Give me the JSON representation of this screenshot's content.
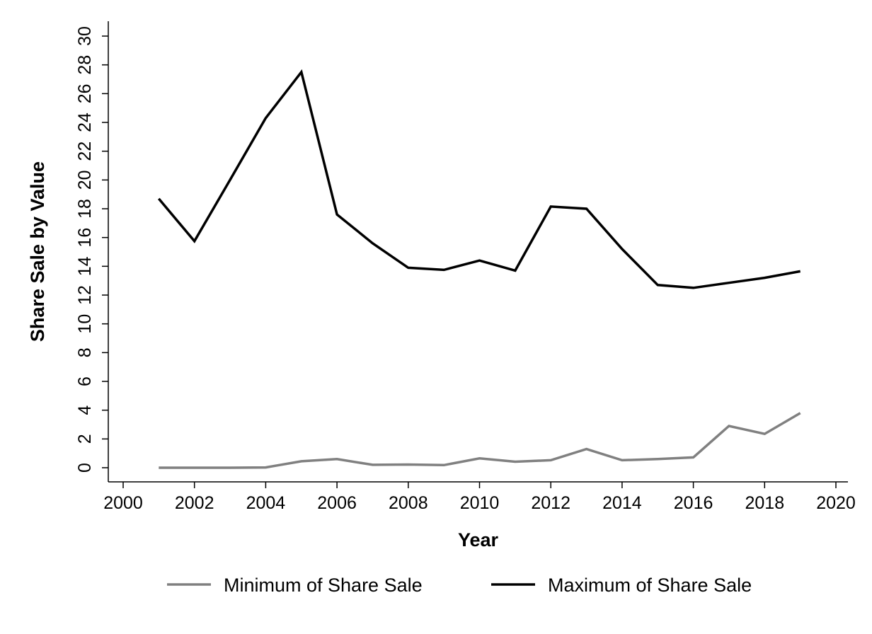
{
  "chart_data": {
    "type": "line",
    "xlabel": "Year",
    "ylabel": "Share Sale by Value",
    "xlim": [
      2000,
      2020
    ],
    "ylim": [
      0,
      30
    ],
    "xticks": [
      2000,
      2002,
      2004,
      2006,
      2008,
      2010,
      2012,
      2014,
      2016,
      2018,
      2020
    ],
    "yticks": [
      0,
      2,
      4,
      6,
      8,
      10,
      12,
      14,
      16,
      18,
      20,
      22,
      24,
      26,
      28,
      30
    ],
    "grid": false,
    "legend_position": "bottom",
    "x": [
      2001,
      2002,
      2003,
      2004,
      2005,
      2006,
      2007,
      2008,
      2009,
      2010,
      2011,
      2012,
      2013,
      2014,
      2015,
      2016,
      2017,
      2018,
      2019
    ],
    "series": [
      {
        "name": "Minimum of Share Sale",
        "color": "#808080",
        "values": [
          0.0,
          0.0,
          0.0,
          0.02,
          0.45,
          0.6,
          0.2,
          0.22,
          0.18,
          0.65,
          0.42,
          0.52,
          1.3,
          0.52,
          0.6,
          0.72,
          2.9,
          2.35,
          3.8
        ]
      },
      {
        "name": "Maximum of Share Sale",
        "color": "#000000",
        "values": [
          18.7,
          15.75,
          20.0,
          24.3,
          27.5,
          17.6,
          15.6,
          13.9,
          13.75,
          14.4,
          13.7,
          18.15,
          18.0,
          15.2,
          12.7,
          12.5,
          12.85,
          13.2,
          13.65
        ]
      }
    ]
  }
}
